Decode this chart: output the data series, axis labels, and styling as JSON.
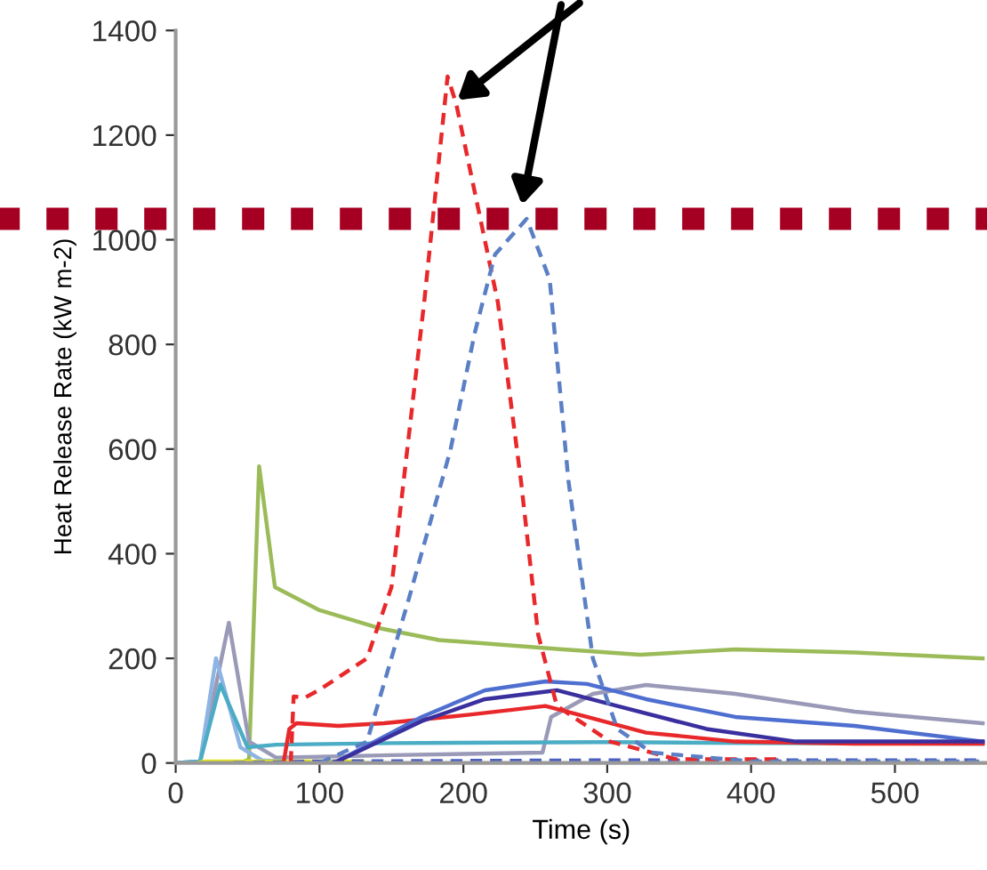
{
  "chart_data": {
    "type": "line",
    "xlabel": "Time (s)",
    "ylabel": "Heat Release Rate (kW m-2)",
    "xlim": [
      0,
      564
    ],
    "ylim": [
      0,
      1400
    ],
    "xticks": [
      0,
      100,
      200,
      300,
      400,
      500
    ],
    "yticks": [
      0,
      200,
      400,
      600,
      800,
      1000,
      1200,
      1400
    ],
    "grid": false,
    "legend": false,
    "marker": "none",
    "ref_lines": [
      {
        "axis": "y",
        "value": 1040,
        "color": "#a50021",
        "line_style": "dotted"
      }
    ],
    "series": [
      {
        "color": "#9bbb59",
        "line_style": "solid",
        "x": [
          0,
          45,
          51,
          58,
          69,
          100,
          141,
          183,
          265,
          323,
          389,
          472,
          561
        ],
        "values": [
          0,
          0,
          7,
          567,
          336,
          292,
          258,
          235,
          218,
          207,
          217,
          211,
          200
        ]
      },
      {
        "color": "#9a9ab8",
        "line_style": "solid",
        "x": [
          0,
          17,
          37,
          51,
          70,
          150,
          255,
          261,
          290,
          327,
          389,
          472,
          561
        ],
        "values": [
          0,
          3,
          268,
          41,
          10,
          15,
          20,
          88,
          132,
          149,
          132,
          98,
          76
        ]
      },
      {
        "color": "#8db4e2",
        "line_style": "solid",
        "x": [
          0,
          17,
          28,
          45,
          60,
          100
        ],
        "values": [
          0,
          3,
          200,
          30,
          5,
          0
        ]
      },
      {
        "color": "#4bacc6",
        "line_style": "solid",
        "x": [
          0,
          17,
          31,
          50,
          70,
          150,
          300,
          400,
          561
        ],
        "values": [
          0,
          3,
          150,
          30,
          35,
          38,
          40,
          38,
          37
        ]
      },
      {
        "color": "#e6e61a",
        "line_style": "solid",
        "x": [
          15,
          20,
          130
        ],
        "values": [
          0,
          3,
          3
        ]
      },
      {
        "color": "#4a5fc0",
        "line_style": "dashed",
        "x": [
          40,
          100,
          300,
          561
        ],
        "values": [
          0,
          3,
          5,
          5
        ]
      },
      {
        "color": "#e8282a",
        "line_style": "solid",
        "x": [
          75,
          79,
          84,
          113,
          145,
          203,
          257,
          286,
          327,
          389,
          472,
          561
        ],
        "values": [
          0,
          65,
          76,
          71,
          76,
          92,
          109,
          88,
          58,
          41,
          37,
          37
        ]
      },
      {
        "color": "#4f6fd0",
        "line_style": "solid",
        "x": [
          110,
          171,
          215,
          257,
          286,
          327,
          389,
          472,
          561
        ],
        "values": [
          0,
          88,
          139,
          156,
          151,
          122,
          88,
          71,
          41
        ]
      },
      {
        "color": "#3a2f9e",
        "line_style": "solid",
        "x": [
          110,
          171,
          215,
          265,
          307,
          369,
          431,
          561
        ],
        "values": [
          0,
          80,
          122,
          139,
          109,
          65,
          41,
          41
        ]
      },
      {
        "color": "#e8282a",
        "line_style": "dashed",
        "x": [
          80,
          82,
          90,
          100,
          133,
          150,
          173,
          178,
          189,
          195,
          224,
          240,
          252,
          265,
          302,
          348,
          420
        ],
        "values": [
          0,
          127,
          125,
          140,
          200,
          336,
          887,
          1020,
          1312,
          1260,
          880,
          540,
          245,
          109,
          41,
          7,
          7
        ]
      },
      {
        "color": "#5b7fc4",
        "line_style": "dashed",
        "x": [
          100,
          133,
          162,
          191,
          208,
          222,
          244,
          260,
          273,
          290,
          307,
          331,
          400,
          561
        ],
        "values": [
          0,
          41,
          313,
          598,
          823,
          972,
          1040,
          924,
          540,
          200,
          65,
          20,
          3,
          3
        ]
      }
    ]
  }
}
